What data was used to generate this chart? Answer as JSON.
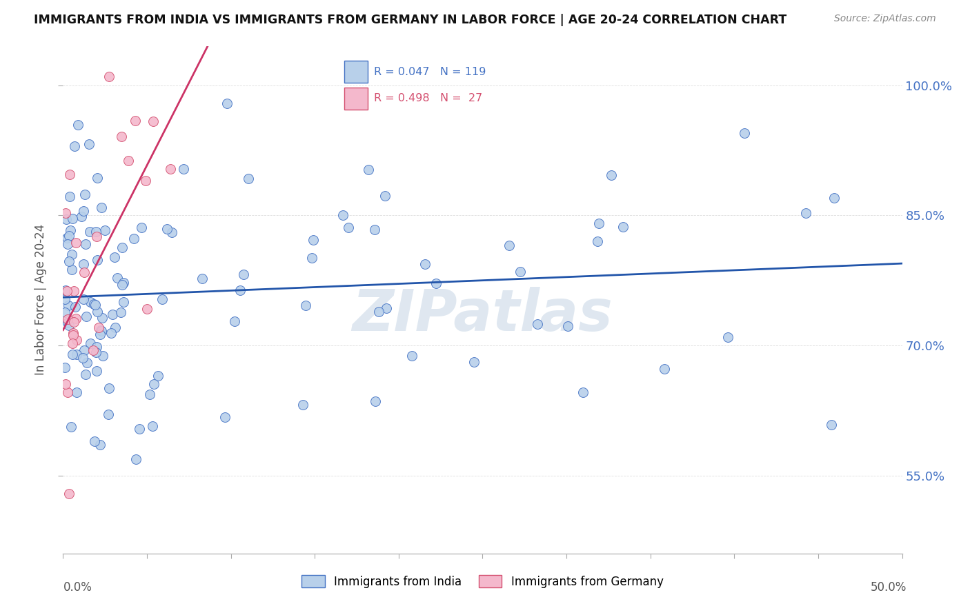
{
  "title": "IMMIGRANTS FROM INDIA VS IMMIGRANTS FROM GERMANY IN LABOR FORCE | AGE 20-24 CORRELATION CHART",
  "source": "Source: ZipAtlas.com",
  "ylabel": "In Labor Force | Age 20-24",
  "xmin": 0.0,
  "xmax": 0.5,
  "ymin": 0.46,
  "ymax": 1.045,
  "yticks": [
    0.55,
    0.7,
    0.85,
    1.0
  ],
  "ytick_labels": [
    "55.0%",
    "70.0%",
    "85.0%",
    "100.0%"
  ],
  "india_face_color": "#b8d0ea",
  "india_edge_color": "#4472c4",
  "germany_face_color": "#f4b8cc",
  "germany_edge_color": "#d45070",
  "india_line_color": "#2255aa",
  "germany_line_color": "#cc3366",
  "legend_india": "Immigrants from India",
  "legend_germany": "Immigrants from Germany",
  "R_india": 0.047,
  "N_india": 119,
  "R_germany": 0.498,
  "N_germany": 27,
  "watermark": "ZIPatlas",
  "background_color": "#ffffff",
  "grid_color": "#dddddd",
  "title_color": "#111111",
  "source_color": "#888888",
  "label_color": "#555555"
}
